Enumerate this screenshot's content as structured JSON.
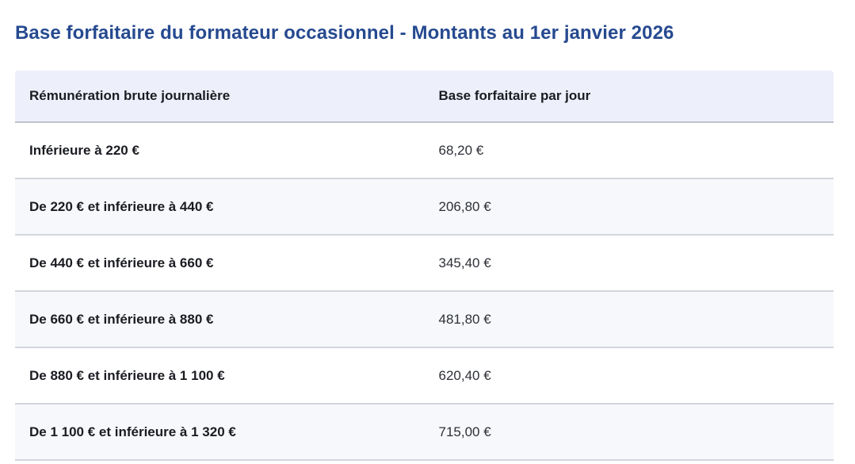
{
  "page": {
    "title": "Base forfaitaire du formateur occasionnel - Montants au 1er janvier 2026"
  },
  "colors": {
    "title_text": "#264a90",
    "header_background": "#edf0fa",
    "alt_row_background": "#f6f8fb",
    "row_border": "#d2d5dd",
    "body_text": "#1a1c21"
  },
  "table": {
    "columns": [
      "Rémunération brute journalière",
      "Base forfaitaire par jour"
    ],
    "rows": [
      {
        "bracket": "Inférieure à 220 €",
        "base": "68,20 €"
      },
      {
        "bracket": "De 220 € et inférieure à 440 €",
        "base": "206,80 €"
      },
      {
        "bracket": "De 440 € et inférieure à 660 €",
        "base": "345,40 €"
      },
      {
        "bracket": "De 660 € et inférieure à 880 €",
        "base": "481,80 €"
      },
      {
        "bracket": "De 880 € et inférieure à 1 100 €",
        "base": "620,40 €"
      },
      {
        "bracket": "De 1 100 € et inférieure à 1 320 €",
        "base": "715,00 €"
      }
    ]
  },
  "chart_data": {
    "type": "table",
    "title": "Base forfaitaire du formateur occasionnel - Montants au 1er janvier 2026",
    "columns": [
      "Rémunération brute journalière",
      "Base forfaitaire par jour"
    ],
    "rows": [
      [
        "Inférieure à 220 €",
        "68,20 €"
      ],
      [
        "De 220 € et inférieure à 440 €",
        "206,80 €"
      ],
      [
        "De 440 € et inférieure à 660 €",
        "345,40 €"
      ],
      [
        "De 660 € et inférieure à 880 €",
        "481,80 €"
      ],
      [
        "De 880 € et inférieure à 1 100 €",
        "620,40 €"
      ],
      [
        "De 1 100 € et inférieure à 1 320 €",
        "715,00 €"
      ]
    ]
  }
}
